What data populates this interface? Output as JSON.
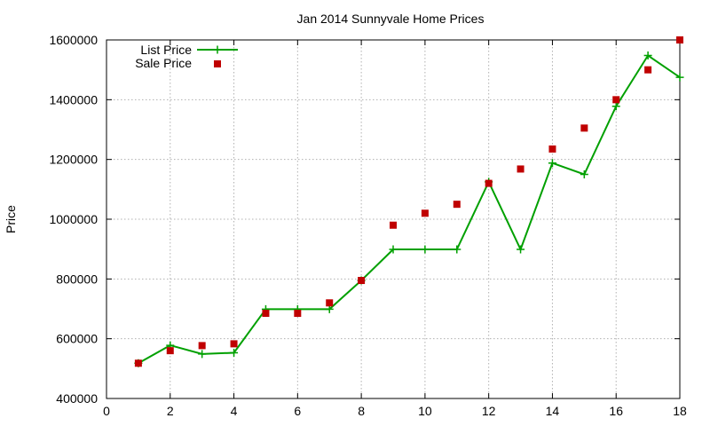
{
  "chart_data": {
    "type": "line",
    "title": "Jan 2014 Sunnyvale Home Prices",
    "xlabel": "",
    "ylabel": "Price",
    "xlim": [
      0,
      18
    ],
    "ylim": [
      400000,
      1600000
    ],
    "xticks": [
      0,
      2,
      4,
      6,
      8,
      10,
      12,
      14,
      16,
      18
    ],
    "yticks": [
      400000,
      600000,
      800000,
      1000000,
      1200000,
      1400000,
      1600000
    ],
    "xtick_labels": [
      "0",
      "2",
      "4",
      "6",
      "8",
      "10",
      "12",
      "14",
      "16",
      "18"
    ],
    "ytick_labels": [
      "400000",
      "600000",
      "800000",
      "1000000",
      "1200000",
      "1400000",
      "1600000"
    ],
    "grid": true,
    "legend_position": "top-left",
    "series": [
      {
        "name": "List Price",
        "style": "line-with-plus-markers",
        "color": "#00a000",
        "x": [
          1,
          2,
          3,
          4,
          5,
          6,
          7,
          8,
          9,
          10,
          11,
          12,
          13,
          14,
          15,
          16,
          17,
          18
        ],
        "y": [
          518000,
          578000,
          549000,
          553000,
          699000,
          699000,
          699000,
          795000,
          899000,
          899000,
          899000,
          1125000,
          899000,
          1188000,
          1150000,
          1378000,
          1548000,
          1475000
        ]
      },
      {
        "name": "Sale Price",
        "style": "square-markers",
        "color": "#c00000",
        "x": [
          1,
          2,
          3,
          4,
          5,
          6,
          7,
          8,
          9,
          10,
          11,
          12,
          13,
          14,
          15,
          16,
          17,
          18
        ],
        "y": [
          518000,
          560000,
          577000,
          583000,
          685000,
          685000,
          720000,
          795000,
          980000,
          1020000,
          1050000,
          1120000,
          1168000,
          1235000,
          1305000,
          1400000,
          1500000,
          1600000
        ]
      }
    ]
  }
}
